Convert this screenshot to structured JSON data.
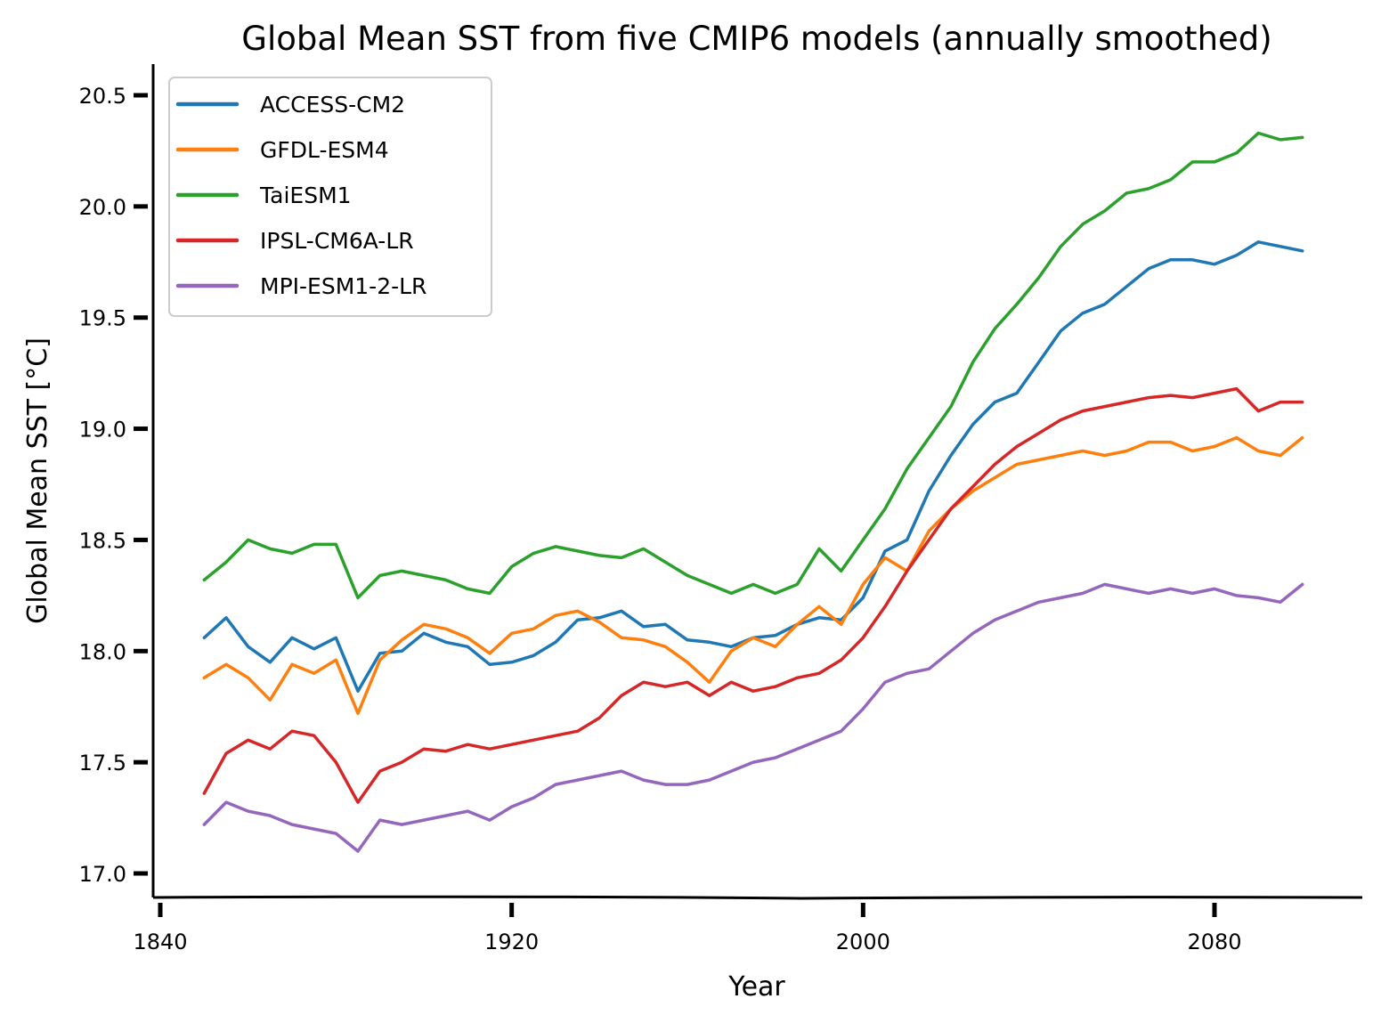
{
  "chart_data": {
    "type": "line",
    "title": "Global Mean SST from five CMIP6 models (annually smoothed)",
    "xlabel": "Year",
    "ylabel": "Global Mean SST [$^\\circ C$]",
    "xlim": [
      1840,
      2112
    ],
    "ylim": [
      16.9,
      20.65
    ],
    "xticks": [
      1840,
      1920,
      2000,
      2080
    ],
    "yticks": [
      "17.0",
      "17.5",
      "18.0",
      "18.5",
      "19.0",
      "19.5",
      "20.0",
      "20.5"
    ],
    "legend_position": "upper-left",
    "grid": false,
    "x": [
      1850,
      1855,
      1860,
      1865,
      1870,
      1875,
      1880,
      1885,
      1890,
      1895,
      1900,
      1905,
      1910,
      1915,
      1920,
      1925,
      1930,
      1935,
      1940,
      1945,
      1950,
      1955,
      1960,
      1965,
      1970,
      1975,
      1980,
      1985,
      1990,
      1995,
      2000,
      2005,
      2010,
      2015,
      2020,
      2025,
      2030,
      2035,
      2040,
      2045,
      2050,
      2055,
      2060,
      2065,
      2070,
      2075,
      2080,
      2085,
      2090,
      2095,
      2100
    ],
    "series": [
      {
        "name": "ACCESS-CM2",
        "color": "#1f77b4",
        "values": [
          18.06,
          18.15,
          18.02,
          17.95,
          18.06,
          18.01,
          18.06,
          17.82,
          17.99,
          18.0,
          18.08,
          18.04,
          18.02,
          17.94,
          17.95,
          17.98,
          18.04,
          18.14,
          18.15,
          18.18,
          18.11,
          18.12,
          18.05,
          18.04,
          18.02,
          18.06,
          18.07,
          18.12,
          18.15,
          18.14,
          18.24,
          18.45,
          18.5,
          18.72,
          18.88,
          19.02,
          19.12,
          19.16,
          19.3,
          19.44,
          19.52,
          19.56,
          19.64,
          19.72,
          19.76,
          19.76,
          19.74,
          19.78,
          19.84,
          19.82,
          19.8
        ]
      },
      {
        "name": "GFDL-ESM4",
        "color": "#ff7f0e",
        "values": [
          17.88,
          17.94,
          17.88,
          17.78,
          17.94,
          17.9,
          17.96,
          17.72,
          17.96,
          18.05,
          18.12,
          18.1,
          18.06,
          17.99,
          18.08,
          18.1,
          18.16,
          18.18,
          18.13,
          18.06,
          18.05,
          18.02,
          17.95,
          17.86,
          18.0,
          18.06,
          18.02,
          18.12,
          18.2,
          18.12,
          18.3,
          18.42,
          18.36,
          18.54,
          18.64,
          18.72,
          18.78,
          18.84,
          18.86,
          18.88,
          18.9,
          18.88,
          18.9,
          18.94,
          18.94,
          18.9,
          18.92,
          18.96,
          18.9,
          18.88,
          18.96
        ]
      },
      {
        "name": "TaiESM1",
        "color": "#2ca02c",
        "values": [
          18.32,
          18.4,
          18.5,
          18.46,
          18.44,
          18.48,
          18.48,
          18.24,
          18.34,
          18.36,
          18.34,
          18.32,
          18.28,
          18.26,
          18.38,
          18.44,
          18.47,
          18.45,
          18.43,
          18.42,
          18.46,
          18.4,
          18.34,
          18.3,
          18.26,
          18.3,
          18.26,
          18.3,
          18.46,
          18.36,
          18.5,
          18.64,
          18.82,
          18.96,
          19.1,
          19.3,
          19.45,
          19.56,
          19.68,
          19.82,
          19.92,
          19.98,
          20.06,
          20.08,
          20.12,
          20.2,
          20.2,
          20.24,
          20.33,
          20.3,
          20.31
        ]
      },
      {
        "name": "IPSL-CM6A-LR",
        "color": "#d62728",
        "values": [
          17.36,
          17.54,
          17.6,
          17.56,
          17.64,
          17.62,
          17.5,
          17.32,
          17.46,
          17.5,
          17.56,
          17.55,
          17.58,
          17.56,
          17.58,
          17.6,
          17.62,
          17.64,
          17.7,
          17.8,
          17.86,
          17.84,
          17.86,
          17.8,
          17.86,
          17.82,
          17.84,
          17.88,
          17.9,
          17.96,
          18.06,
          18.2,
          18.36,
          18.5,
          18.64,
          18.74,
          18.84,
          18.92,
          18.98,
          19.04,
          19.08,
          19.1,
          19.12,
          19.14,
          19.15,
          19.14,
          19.16,
          19.18,
          19.08,
          19.12,
          19.12
        ]
      },
      {
        "name": "MPI-ESM1-2-LR",
        "color": "#9467bd",
        "values": [
          17.22,
          17.32,
          17.28,
          17.26,
          17.22,
          17.2,
          17.18,
          17.1,
          17.24,
          17.22,
          17.24,
          17.26,
          17.28,
          17.24,
          17.3,
          17.34,
          17.4,
          17.42,
          17.44,
          17.46,
          17.42,
          17.4,
          17.4,
          17.42,
          17.46,
          17.5,
          17.52,
          17.56,
          17.6,
          17.64,
          17.74,
          17.86,
          17.9,
          17.92,
          18.0,
          18.08,
          18.14,
          18.18,
          18.22,
          18.24,
          18.26,
          18.3,
          18.28,
          18.26,
          18.28,
          18.26,
          18.28,
          18.25,
          18.24,
          18.22,
          18.3
        ]
      }
    ]
  }
}
